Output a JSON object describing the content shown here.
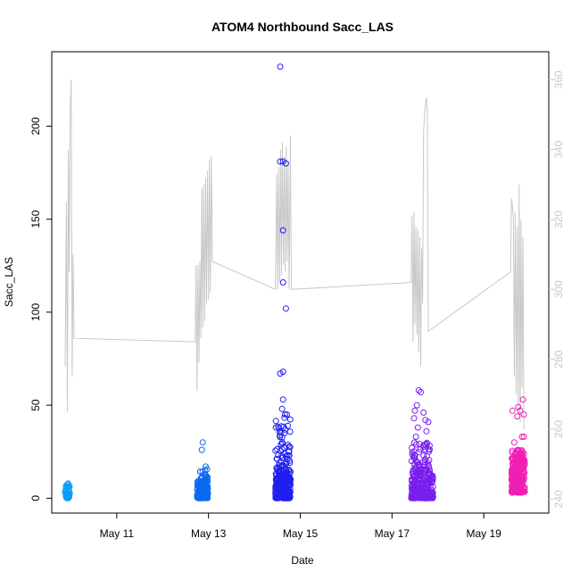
{
  "chart_data": {
    "type": "scatter",
    "title": "ATOM4 Northbound Sacc_LAS",
    "xlabel": "Date",
    "ylabel": "Sacc_LAS",
    "x_ticks": [
      "May 11",
      "May 13",
      "May 15",
      "May 17",
      "May 19"
    ],
    "xlim": [
      "2023-05-09T14:00",
      "2023-05-20T10:00"
    ],
    "ylim": [
      -8,
      240
    ],
    "y_ticks": [
      0,
      50,
      100,
      150,
      200
    ],
    "y2lim": [
      236,
      368
    ],
    "y2_ticks": [
      240,
      260,
      280,
      300,
      320,
      340,
      360
    ],
    "grid": false,
    "legend": "none",
    "series": [
      {
        "color": "#0a9cf5",
        "clusters": [
          {
            "x_start": "2023-05-09T21:00",
            "x_end": "2023-05-09T23:30",
            "n": 45,
            "y_range": [
              0,
              8
            ]
          }
        ],
        "points": []
      },
      {
        "color": "#0a6af0",
        "clusters": [
          {
            "x_start": "2023-05-12T18:00",
            "x_end": "2023-05-12T23:40",
            "n": 170,
            "y_range": [
              0,
              9
            ]
          },
          {
            "x_start": "2023-05-12T19:00",
            "x_end": "2023-05-12T23:40",
            "n": 24,
            "y_range": [
              9,
              16
            ]
          }
        ],
        "points": [
          {
            "x": "2023-05-12T21:00",
            "y": 30
          },
          {
            "x": "2023-05-12T20:30",
            "y": 26
          },
          {
            "x": "2023-05-12T22:30",
            "y": 17
          }
        ]
      },
      {
        "color": "#1f1ff0",
        "clusters": [
          {
            "x_start": "2023-05-14T11:00",
            "x_end": "2023-05-14T19:00",
            "n": 260,
            "y_range": [
              0,
              15
            ]
          },
          {
            "x_start": "2023-05-14T11:00",
            "x_end": "2023-05-14T19:00",
            "n": 60,
            "y_range": [
              15,
              45
            ]
          }
        ],
        "points": [
          {
            "x": "2023-05-14T13:30",
            "y": 232
          },
          {
            "x": "2023-05-14T13:30",
            "y": 181
          },
          {
            "x": "2023-05-14T15:00",
            "y": 181
          },
          {
            "x": "2023-05-14T16:30",
            "y": 180
          },
          {
            "x": "2023-05-14T15:00",
            "y": 144
          },
          {
            "x": "2023-05-14T15:00",
            "y": 116
          },
          {
            "x": "2023-05-14T16:30",
            "y": 102
          },
          {
            "x": "2023-05-14T13:30",
            "y": 67
          },
          {
            "x": "2023-05-14T15:00",
            "y": 68
          },
          {
            "x": "2023-05-14T15:00",
            "y": 53
          },
          {
            "x": "2023-05-14T14:30",
            "y": 48
          },
          {
            "x": "2023-05-14T16:00",
            "y": 45
          },
          {
            "x": "2023-05-14T17:00",
            "y": 45
          }
        ]
      },
      {
        "color": "#7a1ff0",
        "clusters": [
          {
            "x_start": "2023-05-17T10:00",
            "x_end": "2023-05-17T21:30",
            "n": 230,
            "y_range": [
              0,
              15
            ]
          },
          {
            "x_start": "2023-05-17T10:00",
            "x_end": "2023-05-17T20:00",
            "n": 60,
            "y_range": [
              15,
              30
            ]
          }
        ],
        "points": [
          {
            "x": "2023-05-17T14:00",
            "y": 58
          },
          {
            "x": "2023-05-17T15:00",
            "y": 57
          },
          {
            "x": "2023-05-17T13:00",
            "y": 50
          },
          {
            "x": "2023-05-17T12:00",
            "y": 47
          },
          {
            "x": "2023-05-17T16:30",
            "y": 46
          },
          {
            "x": "2023-05-17T11:30",
            "y": 43
          },
          {
            "x": "2023-05-17T17:30",
            "y": 42
          },
          {
            "x": "2023-05-17T19:00",
            "y": 41
          },
          {
            "x": "2023-05-17T13:30",
            "y": 38
          },
          {
            "x": "2023-05-17T18:00",
            "y": 36
          },
          {
            "x": "2023-05-17T12:30",
            "y": 33
          }
        ]
      },
      {
        "color": "#f01fb4",
        "clusters": [
          {
            "x_start": "2023-05-19T14:30",
            "x_end": "2023-05-19T21:30",
            "n": 230,
            "y_range": [
              3,
              26
            ]
          }
        ],
        "points": [
          {
            "x": "2023-05-19T15:00",
            "y": 47
          },
          {
            "x": "2023-05-19T20:30",
            "y": 53
          },
          {
            "x": "2023-05-19T18:00",
            "y": 49
          },
          {
            "x": "2023-05-19T19:00",
            "y": 47
          },
          {
            "x": "2023-05-19T21:00",
            "y": 45
          },
          {
            "x": "2023-05-19T17:30",
            "y": 44
          },
          {
            "x": "2023-05-19T20:00",
            "y": 33
          },
          {
            "x": "2023-05-19T21:00",
            "y": 33
          },
          {
            "x": "2023-05-19T16:00",
            "y": 30
          }
        ]
      }
    ],
    "secondary_line": {
      "color": "#c8c8c8",
      "axis": "right",
      "points": [
        [
          "2023-05-09T21:00",
          278
        ],
        [
          "2023-05-09T21:40",
          325
        ],
        [
          "2023-05-09T22:10",
          265
        ],
        [
          "2023-05-09T22:40",
          340
        ],
        [
          "2023-05-09T23:10",
          305
        ],
        [
          "2023-05-09T23:40",
          352
        ],
        [
          "2023-05-10T00:10",
          360
        ],
        [
          "2023-05-10T00:40",
          275
        ],
        [
          "2023-05-10T01:10",
          310
        ],
        [
          "2023-05-10T01:40",
          286
        ],
        [
          "2023-05-12T17:00",
          285
        ],
        [
          "2023-05-12T17:30",
          307
        ],
        [
          "2023-05-12T18:00",
          271
        ],
        [
          "2023-05-12T18:30",
          307
        ],
        [
          "2023-05-12T19:00",
          279
        ],
        [
          "2023-05-12T19:30",
          308
        ],
        [
          "2023-05-12T20:00",
          286
        ],
        [
          "2023-05-12T20:30",
          329
        ],
        [
          "2023-05-12T21:00",
          289
        ],
        [
          "2023-05-12T21:30",
          330
        ],
        [
          "2023-05-12T22:00",
          291
        ],
        [
          "2023-05-12T22:30",
          332
        ],
        [
          "2023-05-12T23:00",
          296
        ],
        [
          "2023-05-12T23:30",
          334
        ],
        [
          "2023-05-13T00:00",
          297
        ],
        [
          "2023-05-13T00:30",
          337
        ],
        [
          "2023-05-13T01:00",
          299
        ],
        [
          "2023-05-13T01:30",
          338
        ],
        [
          "2023-05-13T02:00",
          308
        ],
        [
          "2023-05-14T11:00",
          300
        ],
        [
          "2023-05-14T11:40",
          333
        ],
        [
          "2023-05-14T12:10",
          300
        ],
        [
          "2023-05-14T12:40",
          335
        ],
        [
          "2023-05-14T13:10",
          302
        ],
        [
          "2023-05-14T13:40",
          340
        ],
        [
          "2023-05-14T14:10",
          304
        ],
        [
          "2023-05-14T14:40",
          342
        ],
        [
          "2023-05-14T15:10",
          307
        ],
        [
          "2023-05-14T15:40",
          338
        ],
        [
          "2023-05-14T16:10",
          305
        ],
        [
          "2023-05-14T16:40",
          341
        ],
        [
          "2023-05-14T17:10",
          308
        ],
        [
          "2023-05-14T17:40",
          336
        ],
        [
          "2023-05-14T18:10",
          300
        ],
        [
          "2023-05-14T18:50",
          344
        ],
        [
          "2023-05-14T19:20",
          300
        ],
        [
          "2023-05-17T10:00",
          302
        ],
        [
          "2023-05-17T10:30",
          321
        ],
        [
          "2023-05-17T11:00",
          285
        ],
        [
          "2023-05-17T11:30",
          322
        ],
        [
          "2023-05-17T12:00",
          290
        ],
        [
          "2023-05-17T12:30",
          318
        ],
        [
          "2023-05-17T13:00",
          287
        ],
        [
          "2023-05-17T13:30",
          317
        ],
        [
          "2023-05-17T14:00",
          282
        ],
        [
          "2023-05-17T14:30",
          315
        ],
        [
          "2023-05-17T15:00",
          278
        ],
        [
          "2023-05-17T15:30",
          312
        ],
        [
          "2023-05-17T16:00",
          296
        ],
        [
          "2023-05-17T16:30",
          345
        ],
        [
          "2023-05-17T17:00",
          350
        ],
        [
          "2023-05-17T17:30",
          353
        ],
        [
          "2023-05-17T18:00",
          355
        ],
        [
          "2023-05-17T18:30",
          350
        ],
        [
          "2023-05-17T19:00",
          288
        ],
        [
          "2023-05-19T14:00",
          305
        ],
        [
          "2023-05-19T14:30",
          326
        ],
        [
          "2023-05-19T15:00",
          324
        ],
        [
          "2023-05-19T15:30",
          320
        ],
        [
          "2023-05-19T16:00",
          275
        ],
        [
          "2023-05-19T16:30",
          322
        ],
        [
          "2023-05-19T17:00",
          270
        ],
        [
          "2023-05-19T17:30",
          318
        ],
        [
          "2023-05-19T18:00",
          266
        ],
        [
          "2023-05-19T18:30",
          330
        ],
        [
          "2023-05-19T19:00",
          262
        ],
        [
          "2023-05-19T19:30",
          320
        ],
        [
          "2023-05-19T20:00",
          272
        ],
        [
          "2023-05-19T20:30",
          315
        ],
        [
          "2023-05-19T21:00",
          260
        ]
      ]
    }
  }
}
